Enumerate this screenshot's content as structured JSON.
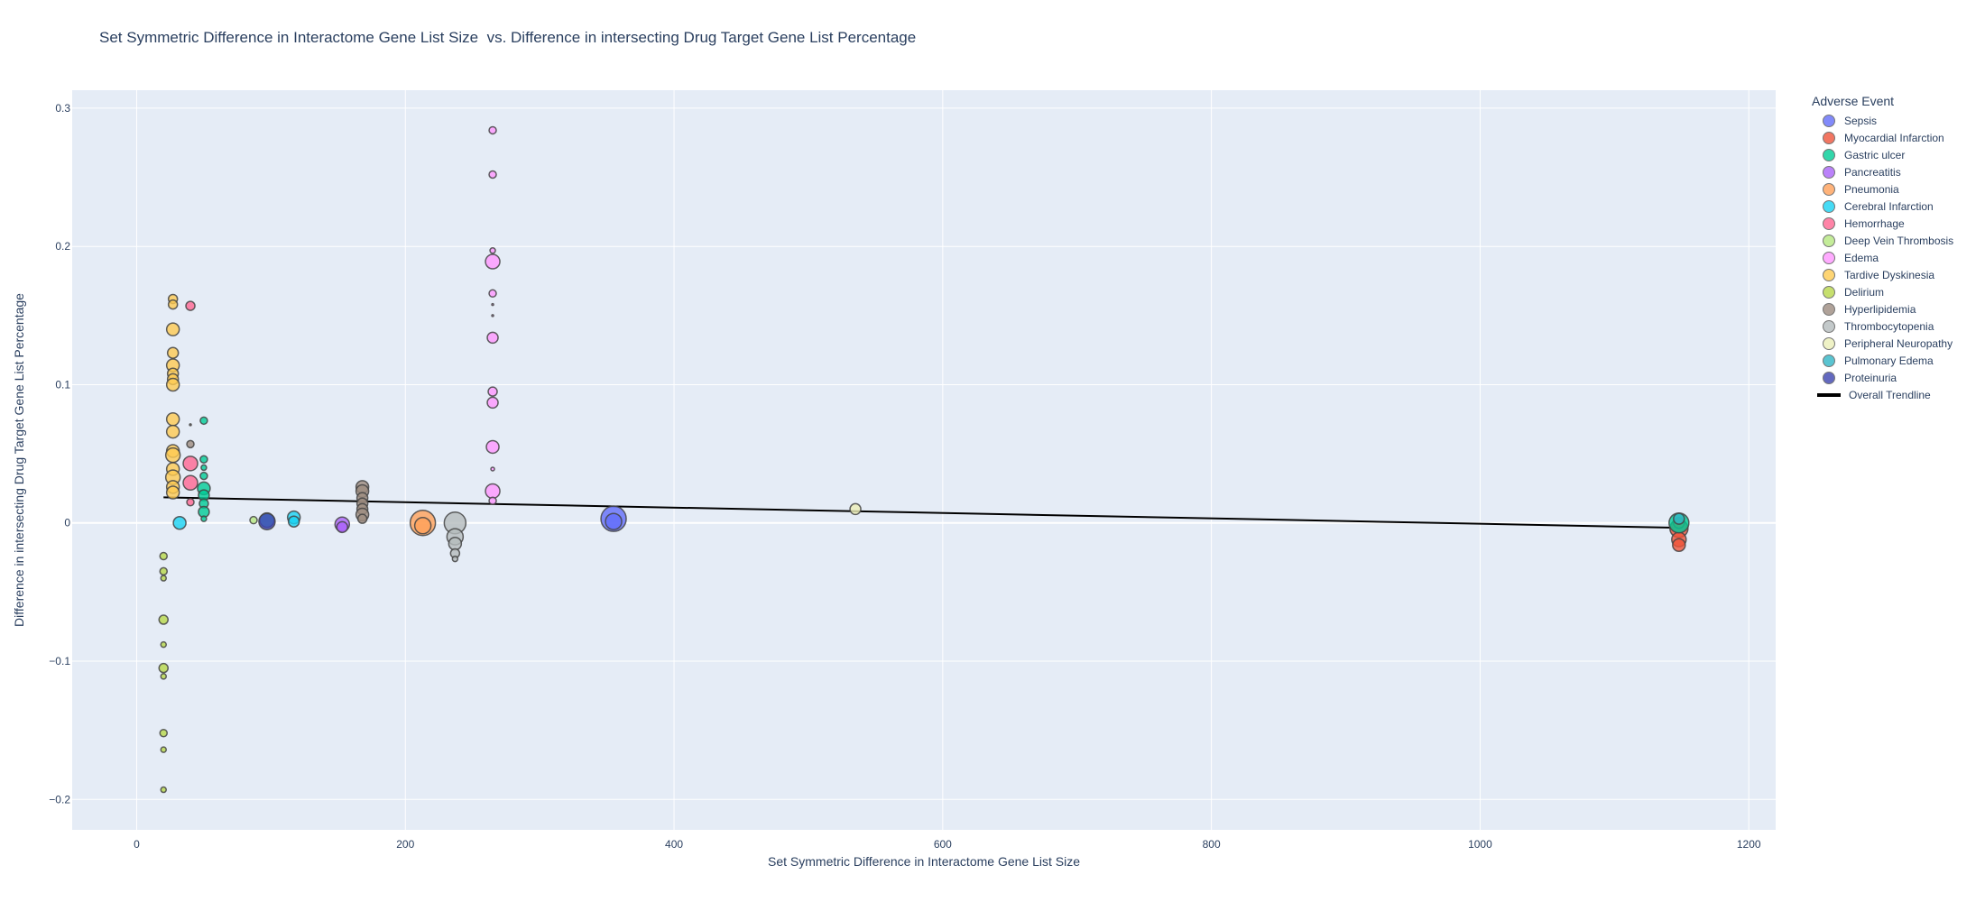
{
  "chart_data": {
    "type": "scatter",
    "title": "Set Symmetric Difference in Interactome Gene List Size  vs. Difference in intersecting Drug Target Gene List Percentage",
    "xlabel": "Set Symmetric Difference in Interactome Gene List Size",
    "ylabel": "Difference in intersecting Drug Target Gene List Percentage",
    "xlim": [
      -48,
      1220
    ],
    "ylim": [
      -0.222,
      0.313
    ],
    "x_ticks": [
      0,
      200,
      400,
      600,
      800,
      1000,
      1200
    ],
    "x_tick_labels": [
      "0",
      "200",
      "400",
      "600",
      "800",
      "1000",
      "1200"
    ],
    "y_ticks": [
      -0.2,
      -0.1,
      0,
      0.1,
      0.2,
      0.3
    ],
    "y_tick_labels": [
      "−0.2",
      "−0.1",
      "0",
      "0.1",
      "0.2",
      "0.3"
    ],
    "grid": true,
    "legend_title": "Adverse Event",
    "legend_position": "right",
    "series": [
      {
        "name": "Sepsis",
        "color": "#636efa",
        "points": [
          [
            355,
            0.003,
            14
          ],
          [
            355,
            0.001,
            9
          ],
          [
            1148,
            -0.002,
            8
          ]
        ]
      },
      {
        "name": "Myocardial Infarction",
        "color": "#ef553b",
        "points": [
          [
            1148,
            -0.004,
            10
          ],
          [
            1148,
            -0.012,
            8
          ],
          [
            1148,
            -0.016,
            7
          ],
          [
            1148,
            0.0,
            6
          ]
        ]
      },
      {
        "name": "Gastric ulcer",
        "color": "#00cc96",
        "points": [
          [
            50,
            0.074,
            4
          ],
          [
            50,
            0.046,
            4
          ],
          [
            50,
            0.04,
            3
          ],
          [
            50,
            0.034,
            4
          ],
          [
            50,
            0.025,
            7
          ],
          [
            50,
            0.02,
            6
          ],
          [
            50,
            0.014,
            5
          ],
          [
            50,
            0.008,
            6
          ],
          [
            50,
            0.003,
            3
          ],
          [
            1148,
            0.0,
            11
          ]
        ]
      },
      {
        "name": "Pancreatitis",
        "color": "#ab63fa",
        "points": [
          [
            153,
            -0.001,
            8
          ],
          [
            153,
            -0.003,
            6
          ]
        ]
      },
      {
        "name": "Pneumonia",
        "color": "#ffa15a",
        "points": [
          [
            213,
            0.0,
            14
          ],
          [
            213,
            -0.002,
            9
          ]
        ]
      },
      {
        "name": "Cerebral Infarction",
        "color": "#19d3f3",
        "points": [
          [
            32,
            0.0,
            7
          ],
          [
            117,
            0.004,
            7
          ],
          [
            117,
            0.001,
            6
          ]
        ]
      },
      {
        "name": "Hemorrhage",
        "color": "#ff6692",
        "points": [
          [
            40,
            0.157,
            5
          ],
          [
            40,
            0.043,
            8
          ],
          [
            40,
            0.029,
            8
          ],
          [
            40,
            0.015,
            4
          ]
        ]
      },
      {
        "name": "Deep Vein Thrombosis",
        "color": "#b6e880",
        "points": [
          [
            87,
            0.002,
            4
          ]
        ]
      },
      {
        "name": "Edema",
        "color": "#ff97ff",
        "points": [
          [
            265,
            0.284,
            4
          ],
          [
            265,
            0.252,
            4
          ],
          [
            265,
            0.197,
            3
          ],
          [
            265,
            0.189,
            8
          ],
          [
            265,
            0.166,
            4
          ],
          [
            265,
            0.158,
            1
          ],
          [
            265,
            0.15,
            1
          ],
          [
            265,
            0.134,
            6
          ],
          [
            265,
            0.095,
            5
          ],
          [
            265,
            0.087,
            6
          ],
          [
            265,
            0.055,
            7
          ],
          [
            265,
            0.039,
            2
          ],
          [
            265,
            0.023,
            8
          ],
          [
            265,
            0.016,
            4
          ]
        ]
      },
      {
        "name": "Tardive Dyskinesia",
        "color": "#fecb52",
        "points": [
          [
            27,
            0.162,
            5
          ],
          [
            27,
            0.158,
            5
          ],
          [
            27,
            0.14,
            7
          ],
          [
            27,
            0.123,
            6
          ],
          [
            27,
            0.114,
            7
          ],
          [
            27,
            0.108,
            6
          ],
          [
            27,
            0.104,
            6
          ],
          [
            27,
            0.1,
            7
          ],
          [
            27,
            0.075,
            7
          ],
          [
            27,
            0.066,
            7
          ],
          [
            27,
            0.052,
            7
          ],
          [
            27,
            0.049,
            8
          ],
          [
            27,
            0.039,
            7
          ],
          [
            27,
            0.033,
            8
          ],
          [
            27,
            0.026,
            7
          ],
          [
            27,
            0.022,
            7
          ]
        ]
      },
      {
        "name": "Delirium",
        "color": "#b8d84a",
        "points": [
          [
            20,
            -0.024,
            4
          ],
          [
            20,
            -0.035,
            4
          ],
          [
            20,
            -0.04,
            3
          ],
          [
            20,
            -0.07,
            5
          ],
          [
            20,
            -0.088,
            3
          ],
          [
            20,
            -0.105,
            5
          ],
          [
            20,
            -0.111,
            3
          ],
          [
            20,
            -0.152,
            4
          ],
          [
            20,
            -0.164,
            3
          ],
          [
            20,
            -0.193,
            3
          ]
        ]
      },
      {
        "name": "Hyperlipidemia",
        "color": "#9d8c80",
        "points": [
          [
            40,
            0.071,
            1
          ],
          [
            40,
            0.057,
            4
          ],
          [
            168,
            0.026,
            7
          ],
          [
            168,
            0.023,
            7
          ],
          [
            168,
            0.018,
            6
          ],
          [
            168,
            0.014,
            6
          ],
          [
            168,
            0.01,
            6
          ],
          [
            168,
            0.006,
            7
          ],
          [
            168,
            0.003,
            5
          ]
        ]
      },
      {
        "name": "Thrombocytopenia",
        "color": "#b5bcbd",
        "points": [
          [
            237,
            0.0,
            12
          ],
          [
            237,
            -0.01,
            9
          ],
          [
            237,
            -0.015,
            7
          ],
          [
            237,
            -0.022,
            5
          ],
          [
            237,
            -0.026,
            3
          ]
        ]
      },
      {
        "name": "Peripheral Neuropathy",
        "color": "#ecefb8",
        "points": [
          [
            535,
            0.01,
            6
          ]
        ]
      },
      {
        "name": "Pulmonary Edema",
        "color": "#32b6c6",
        "points": [
          [
            97,
            0.002,
            8
          ],
          [
            1148,
            0.003,
            6
          ]
        ]
      },
      {
        "name": "Proteinuria",
        "color": "#3d44b0",
        "points": [
          [
            97,
            0.001,
            9
          ]
        ]
      }
    ],
    "trendline": {
      "name": "Overall Trendline",
      "color": "#000000",
      "x": [
        20,
        1148
      ],
      "y": [
        0.0185,
        -0.0035
      ]
    }
  }
}
